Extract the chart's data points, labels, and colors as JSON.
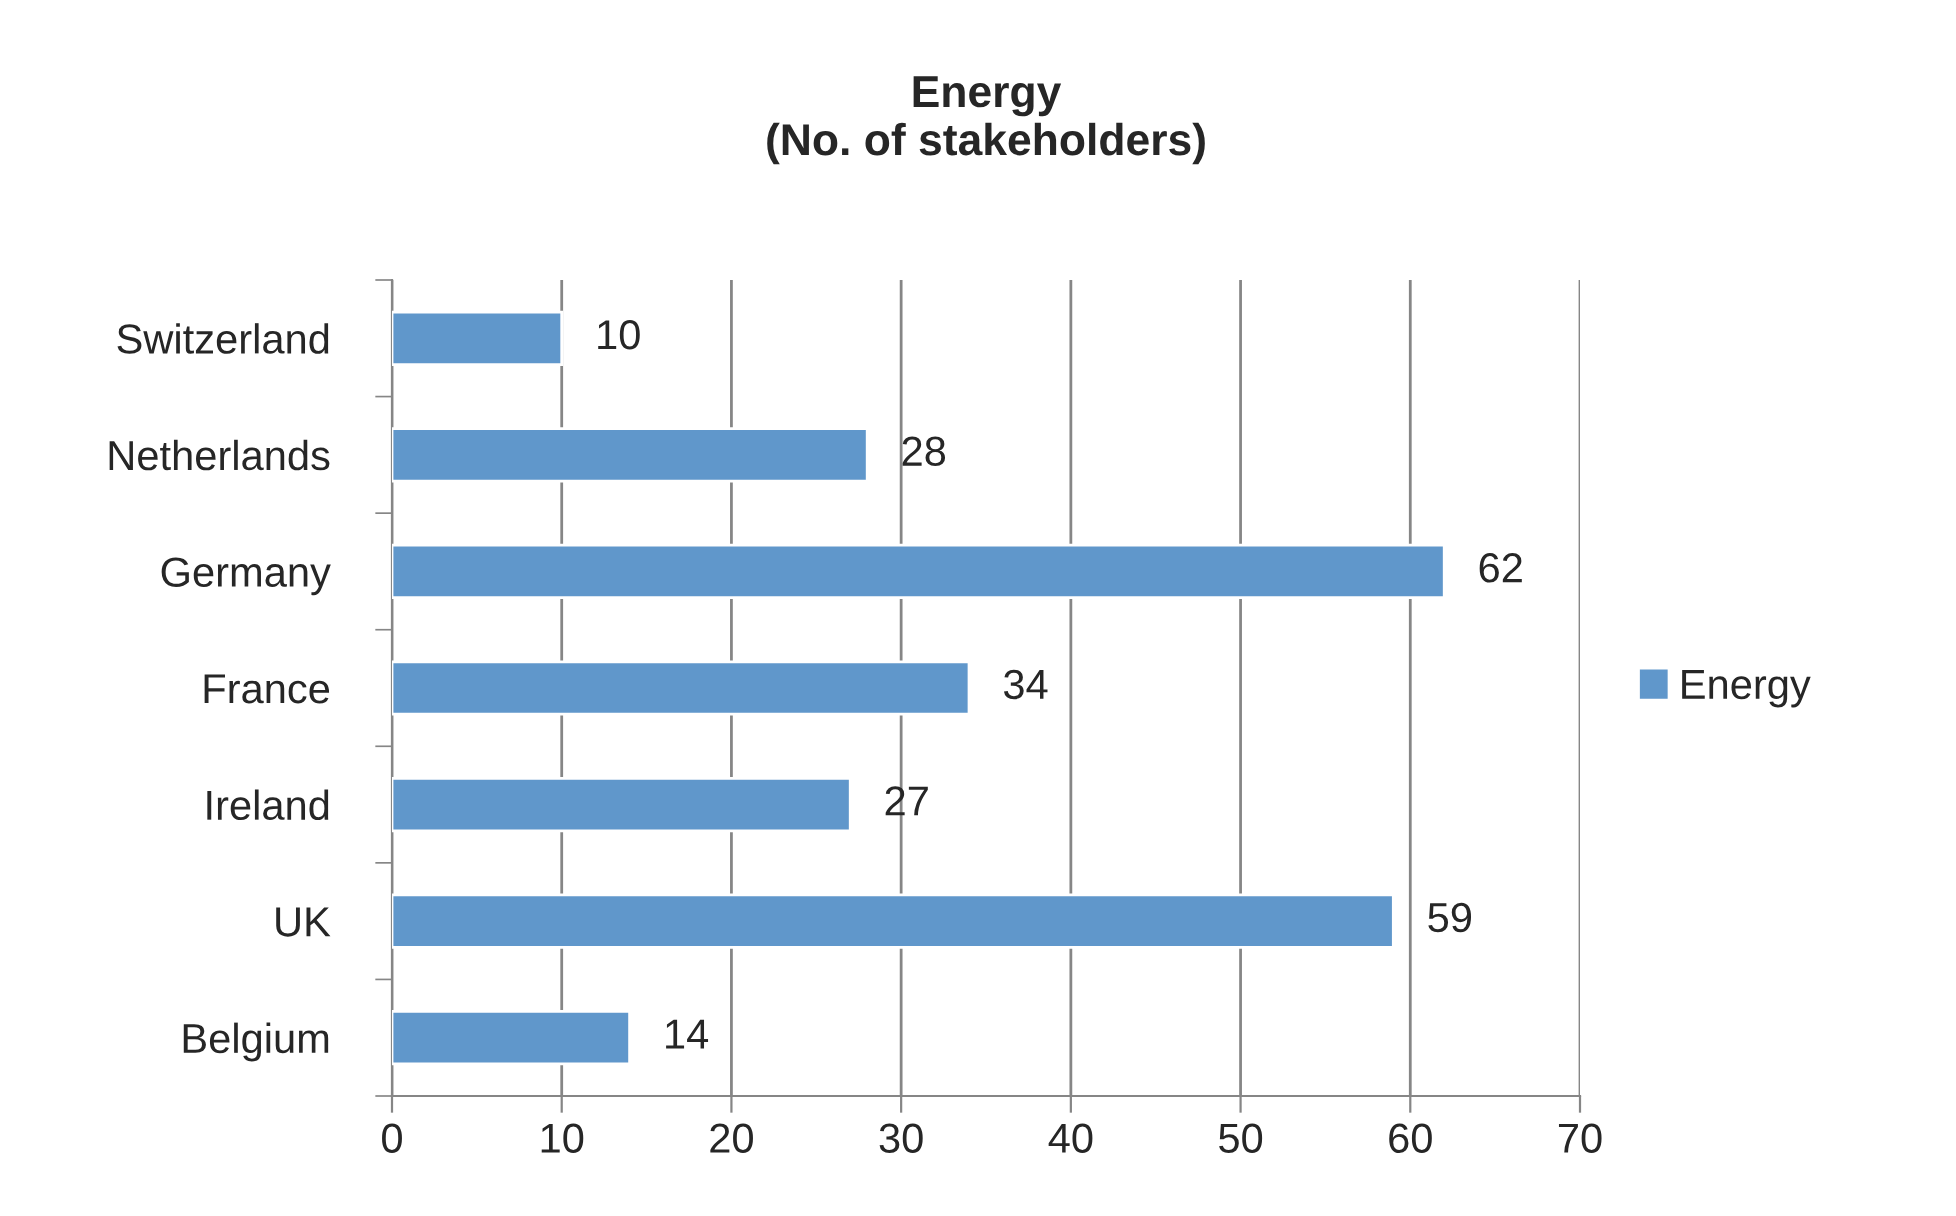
{
  "chart_data": {
    "type": "bar",
    "orientation": "horizontal",
    "title": "Energy\n(No. of stakeholders)",
    "categories": [
      "Switzerland",
      "Netherlands",
      "Germany",
      "France",
      "Ireland",
      "UK",
      "Belgium"
    ],
    "series": [
      {
        "name": "Energy",
        "color": "#6097cb",
        "values": [
          10,
          28,
          62,
          34,
          27,
          59,
          14
        ]
      }
    ],
    "xlim": [
      0,
      70
    ],
    "xticks": [
      0,
      10,
      20,
      30,
      40,
      50,
      60,
      70
    ],
    "grid": "x",
    "legend": "right",
    "data_labels": true
  }
}
